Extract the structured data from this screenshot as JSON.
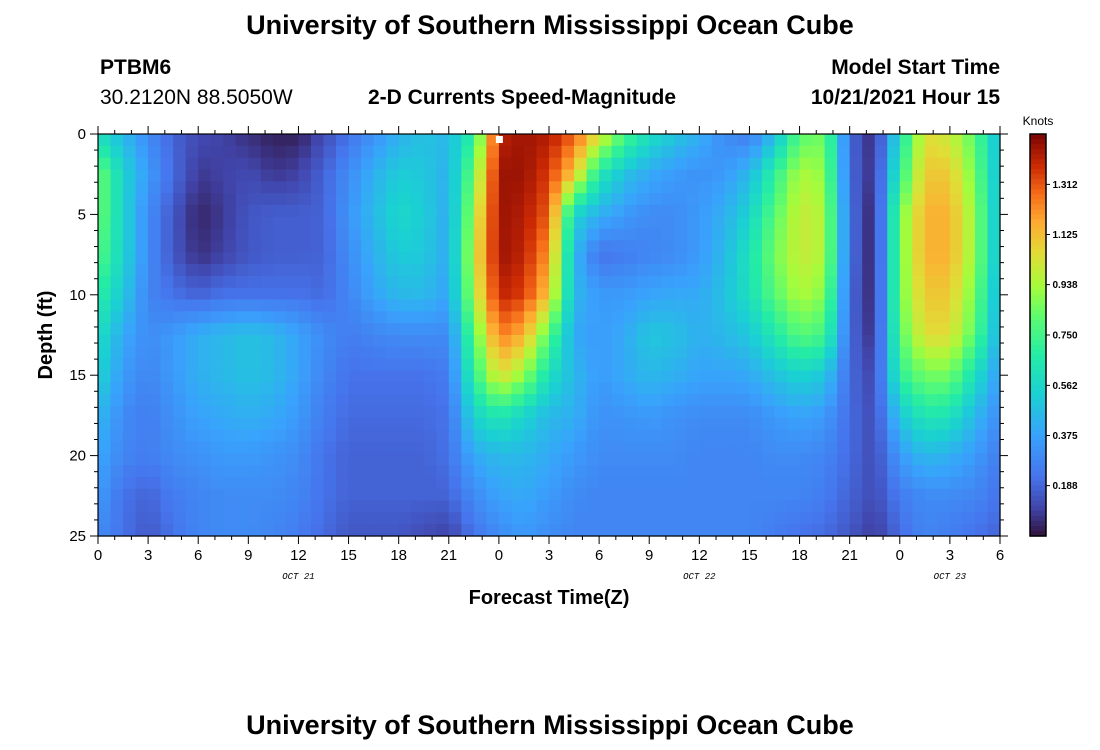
{
  "header": {
    "title": "University of Southern Mississippi Ocean Cube",
    "station_id": "PTBM6",
    "station_coords": "30.2120N  88.5050W",
    "plot_title": "2-D Currents Speed-Magnitude",
    "model_start_label": "Model Start Time",
    "model_start_value": "10/21/2021 Hour 15"
  },
  "footer": {
    "repeat_title": "University of Southern Mississippi Ocean Cube"
  },
  "chart_data": {
    "type": "heatmap",
    "title": "2-D Currents Speed-Magnitude",
    "xlabel": "Forecast Time(Z)",
    "ylabel": "Depth (ft)",
    "units": "Knots",
    "x_hours_range": [
      0,
      54
    ],
    "y_range": [
      0,
      25
    ],
    "x_ticks": [
      {
        "hour": 0,
        "label": "0"
      },
      {
        "hour": 3,
        "label": "3"
      },
      {
        "hour": 6,
        "label": "6"
      },
      {
        "hour": 9,
        "label": "9"
      },
      {
        "hour": 12,
        "label": "12"
      },
      {
        "hour": 15,
        "label": "15"
      },
      {
        "hour": 18,
        "label": "18"
      },
      {
        "hour": 21,
        "label": "21"
      },
      {
        "hour": 24,
        "label": "0"
      },
      {
        "hour": 27,
        "label": "3"
      },
      {
        "hour": 30,
        "label": "6"
      },
      {
        "hour": 33,
        "label": "9"
      },
      {
        "hour": 36,
        "label": "12"
      },
      {
        "hour": 39,
        "label": "15"
      },
      {
        "hour": 42,
        "label": "18"
      },
      {
        "hour": 45,
        "label": "21"
      },
      {
        "hour": 48,
        "label": "0"
      },
      {
        "hour": 51,
        "label": "3"
      },
      {
        "hour": 54,
        "label": "6"
      }
    ],
    "date_labels": [
      {
        "hour": 12,
        "label": "OCT 21"
      },
      {
        "hour": 36,
        "label": "OCT 22"
      },
      {
        "hour": 51,
        "label": "OCT 23"
      }
    ],
    "y_ticks": [
      0,
      5,
      10,
      15,
      20,
      25
    ],
    "colorbar": {
      "range": [
        0.0,
        1.5
      ],
      "ticks": [
        "1.312",
        "1.125",
        "0.938",
        "0.750",
        "0.562",
        "0.375",
        "0.188"
      ]
    },
    "time_hours": [
      0,
      1.5,
      3,
      4.5,
      6,
      7.5,
      9,
      10.5,
      12,
      13.5,
      15,
      16.5,
      18,
      19.5,
      21,
      22.5,
      24,
      25.5,
      27,
      28.5,
      30,
      31.5,
      33,
      34.5,
      36,
      37.5,
      39,
      40.5,
      42,
      43.5,
      45,
      46.5,
      48,
      49.5,
      51,
      52.5,
      54
    ],
    "depths_ft": [
      0,
      2.5,
      5,
      7.5,
      10,
      12.5,
      15,
      17.5,
      20,
      22.5,
      25
    ],
    "speed_knots": [
      [
        0.6,
        0.45,
        0.3,
        0.18,
        0.12,
        0.1,
        0.06,
        0.03,
        0.03,
        0.12,
        0.22,
        0.32,
        0.42,
        0.48,
        0.45,
        0.7,
        1.4,
        1.45,
        1.42,
        1.3,
        1.05,
        0.78,
        0.6,
        0.5,
        0.42,
        0.3,
        0.25,
        0.45,
        0.8,
        0.85,
        0.2,
        0.04,
        0.6,
        1.05,
        1.0,
        0.8,
        0.45
      ],
      [
        0.85,
        0.55,
        0.35,
        0.2,
        0.08,
        0.1,
        0.12,
        0.08,
        0.1,
        0.18,
        0.3,
        0.42,
        0.52,
        0.5,
        0.42,
        0.85,
        1.45,
        1.45,
        1.35,
        1.1,
        0.65,
        0.48,
        0.4,
        0.35,
        0.32,
        0.35,
        0.45,
        0.7,
        0.95,
        0.9,
        0.2,
        0.05,
        0.7,
        1.1,
        1.1,
        0.85,
        0.45
      ],
      [
        0.85,
        0.55,
        0.3,
        0.15,
        0.04,
        0.08,
        0.15,
        0.17,
        0.17,
        0.18,
        0.33,
        0.45,
        0.57,
        0.52,
        0.4,
        0.95,
        1.45,
        1.42,
        1.3,
        0.55,
        0.42,
        0.35,
        0.3,
        0.3,
        0.35,
        0.42,
        0.55,
        0.8,
        1.0,
        0.95,
        0.22,
        0.02,
        0.85,
        1.15,
        1.15,
        0.9,
        0.45
      ],
      [
        0.8,
        0.55,
        0.3,
        0.15,
        0.06,
        0.1,
        0.15,
        0.17,
        0.17,
        0.18,
        0.3,
        0.42,
        0.52,
        0.5,
        0.4,
        1.0,
        1.45,
        1.4,
        1.2,
        0.45,
        0.22,
        0.25,
        0.28,
        0.3,
        0.35,
        0.45,
        0.62,
        0.85,
        1.0,
        0.95,
        0.22,
        0.02,
        0.85,
        1.15,
        1.15,
        0.9,
        0.45
      ],
      [
        0.7,
        0.5,
        0.28,
        0.22,
        0.18,
        0.22,
        0.22,
        0.22,
        0.22,
        0.2,
        0.28,
        0.38,
        0.45,
        0.45,
        0.38,
        0.95,
        1.4,
        1.35,
        1.1,
        0.45,
        0.35,
        0.35,
        0.38,
        0.4,
        0.4,
        0.48,
        0.6,
        0.8,
        0.95,
        0.88,
        0.2,
        0.03,
        0.85,
        1.1,
        1.1,
        0.85,
        0.42
      ],
      [
        0.6,
        0.4,
        0.3,
        0.35,
        0.42,
        0.45,
        0.48,
        0.45,
        0.38,
        0.3,
        0.25,
        0.28,
        0.3,
        0.3,
        0.3,
        0.8,
        1.25,
        1.15,
        0.8,
        0.4,
        0.35,
        0.4,
        0.5,
        0.48,
        0.42,
        0.45,
        0.5,
        0.65,
        0.8,
        0.75,
        0.2,
        0.05,
        0.8,
        1.05,
        1.05,
        0.8,
        0.4
      ],
      [
        0.55,
        0.35,
        0.28,
        0.35,
        0.42,
        0.45,
        0.48,
        0.45,
        0.38,
        0.28,
        0.22,
        0.22,
        0.22,
        0.22,
        0.25,
        0.7,
        1.05,
        0.9,
        0.6,
        0.45,
        0.35,
        0.4,
        0.45,
        0.42,
        0.38,
        0.38,
        0.4,
        0.48,
        0.55,
        0.5,
        0.2,
        0.1,
        0.7,
        0.85,
        0.85,
        0.6,
        0.35
      ],
      [
        0.45,
        0.3,
        0.25,
        0.32,
        0.38,
        0.4,
        0.42,
        0.4,
        0.35,
        0.25,
        0.2,
        0.2,
        0.2,
        0.2,
        0.22,
        0.55,
        0.65,
        0.55,
        0.45,
        0.42,
        0.32,
        0.33,
        0.35,
        0.32,
        0.3,
        0.3,
        0.3,
        0.35,
        0.38,
        0.35,
        0.2,
        0.12,
        0.5,
        0.65,
        0.62,
        0.45,
        0.3
      ],
      [
        0.4,
        0.28,
        0.25,
        0.3,
        0.32,
        0.35,
        0.35,
        0.33,
        0.3,
        0.22,
        0.18,
        0.18,
        0.18,
        0.18,
        0.22,
        0.4,
        0.45,
        0.45,
        0.4,
        0.35,
        0.3,
        0.3,
        0.3,
        0.3,
        0.28,
        0.28,
        0.28,
        0.3,
        0.3,
        0.28,
        0.2,
        0.12,
        0.35,
        0.45,
        0.42,
        0.35,
        0.25
      ],
      [
        0.35,
        0.22,
        0.18,
        0.25,
        0.28,
        0.3,
        0.3,
        0.3,
        0.28,
        0.22,
        0.18,
        0.18,
        0.18,
        0.18,
        0.18,
        0.3,
        0.38,
        0.4,
        0.35,
        0.3,
        0.28,
        0.28,
        0.28,
        0.28,
        0.28,
        0.28,
        0.28,
        0.28,
        0.28,
        0.25,
        0.18,
        0.12,
        0.25,
        0.3,
        0.3,
        0.28,
        0.22
      ],
      [
        0.3,
        0.22,
        0.15,
        0.22,
        0.28,
        0.3,
        0.3,
        0.28,
        0.25,
        0.2,
        0.15,
        0.15,
        0.15,
        0.12,
        0.1,
        0.22,
        0.3,
        0.35,
        0.3,
        0.28,
        0.28,
        0.28,
        0.28,
        0.28,
        0.28,
        0.28,
        0.28,
        0.25,
        0.22,
        0.2,
        0.15,
        0.08,
        0.2,
        0.28,
        0.25,
        0.22,
        0.18
      ]
    ],
    "marker_hour": 24
  }
}
